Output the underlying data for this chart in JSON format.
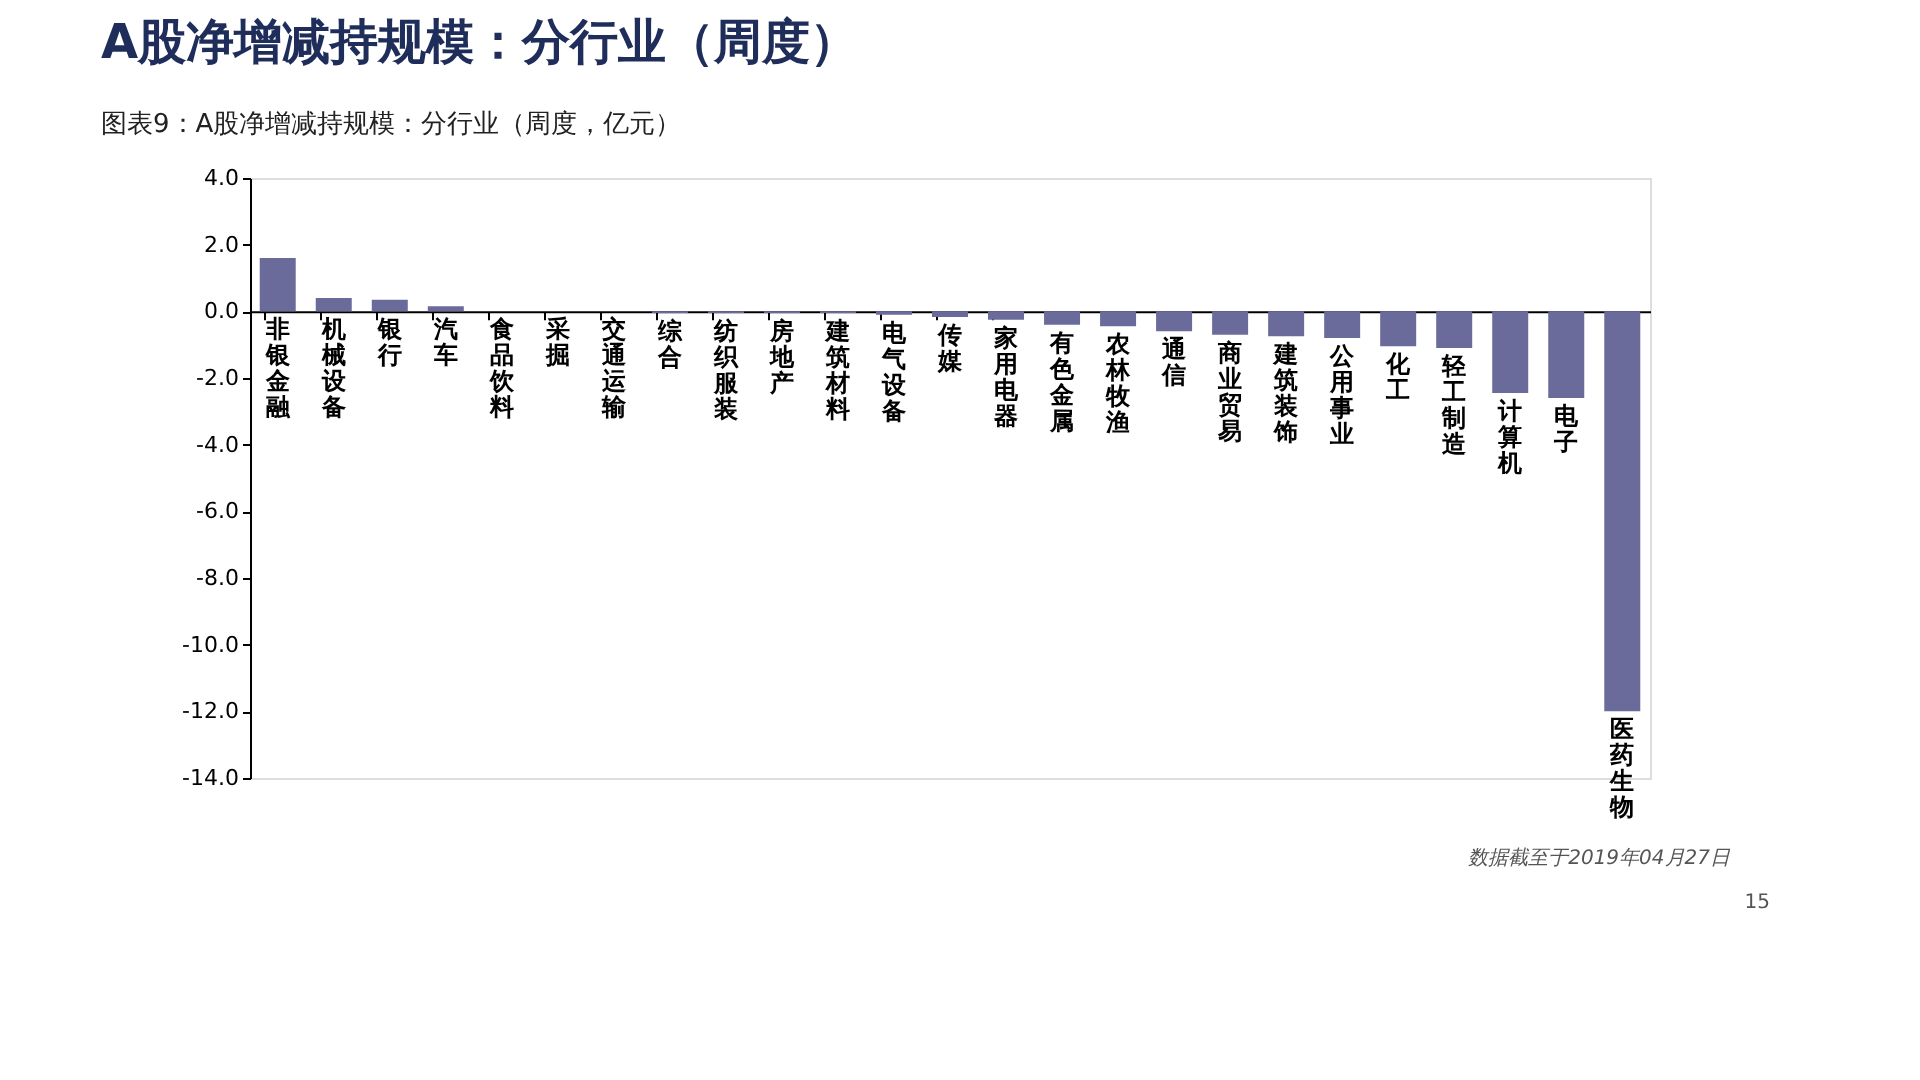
{
  "chart_data": {
    "type": "bar",
    "title": "A股净增减持规模：分行业（周度）",
    "subtitle": "图表9：A股净增减持规模：分行业（周度，亿元）",
    "categories": [
      "非银金融",
      "机械设备",
      "银行",
      "汽车",
      "食品饮料",
      "采掘",
      "交通运输",
      "综合",
      "纺织服装",
      "房地产",
      "建筑材料",
      "电气设备",
      "传媒",
      "家用电器",
      "有色金属",
      "农林牧渔",
      "通信",
      "商业贸易",
      "建筑装饰",
      "公用事业",
      "化工",
      "轻工制造",
      "计算机",
      "电子",
      "医药生物"
    ],
    "values": [
      1.6,
      0.4,
      0.35,
      0.15,
      null,
      null,
      null,
      -0.05,
      -0.05,
      -0.05,
      -0.05,
      -0.1,
      -0.17,
      -0.25,
      -0.4,
      -0.45,
      -0.6,
      -0.7,
      -0.75,
      -0.8,
      -1.05,
      -1.1,
      -2.45,
      -2.6,
      -12.0
    ],
    "color": "#6b6b9b",
    "ylim": [
      -14,
      4
    ],
    "yticks": [
      {
        "value": 4,
        "label": "4.0"
      },
      {
        "value": 2,
        "label": "2.0"
      },
      {
        "value": 0,
        "label": "0.0"
      },
      {
        "value": -2,
        "label": "-2.0"
      },
      {
        "value": -4,
        "label": "-4.0"
      },
      {
        "value": -6,
        "label": "-6.0"
      },
      {
        "value": -8,
        "label": "-8.0"
      },
      {
        "value": -10,
        "label": "-10.0"
      },
      {
        "value": -12,
        "label": "-12.0"
      },
      {
        "value": -14,
        "label": "-14.0"
      }
    ],
    "grid": false,
    "annotations": [
      "数据截至于2019年04月27日",
      "15"
    ]
  }
}
